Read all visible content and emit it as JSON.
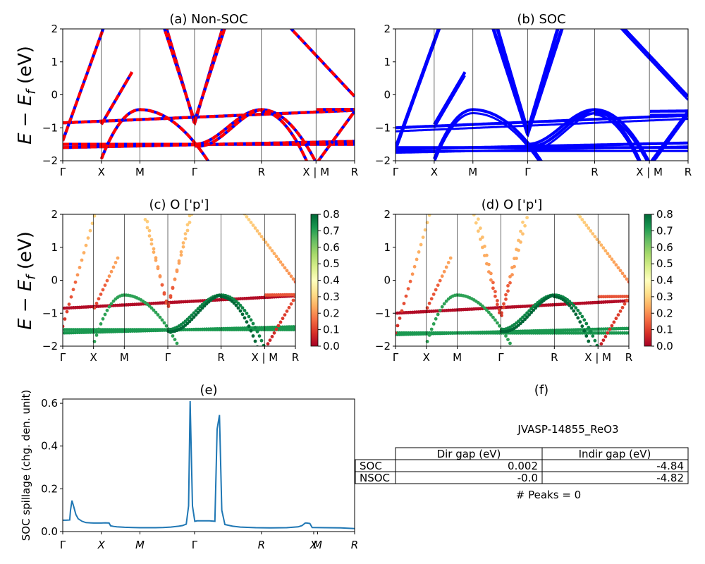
{
  "colors": {
    "nonsoc_solid": "#0000ff",
    "nonsoc_dash": "#ff0000",
    "soc": "#0000ff",
    "spillage": "#1f77b4",
    "colormap": [
      "#a50026",
      "#d73027",
      "#f46d43",
      "#fdae61",
      "#fee08b",
      "#ffffbf",
      "#d9ef8b",
      "#a6d96a",
      "#66bd63",
      "#1a9850",
      "#006837"
    ]
  },
  "chart_data": [
    {
      "type": "line",
      "panel": "a",
      "title": "(a) Non-SOC",
      "ylabel_parts": {
        "main": "E − E",
        "sub": "f",
        "unit": " (eV)"
      },
      "ylim": [
        -2,
        2
      ],
      "yticks": [
        "2",
        "1",
        "0",
        "−1",
        "−2"
      ],
      "xticks": [
        {
          "label": "Γ",
          "k": 0.0
        },
        {
          "label": "X",
          "k": 0.5
        },
        {
          "label": "M",
          "k": 1.0
        },
        {
          "label": "Γ",
          "k": 1.707
        },
        {
          "label": "R",
          "k": 2.573
        },
        {
          "label": "X | M",
          "k": 3.28
        },
        {
          "label": "R",
          "k": 3.78
        }
      ],
      "line_style": "thick blue with red dashes"
    },
    {
      "type": "line",
      "panel": "b",
      "title": "(b) SOC",
      "ylim": [
        -2,
        2
      ],
      "yticks": [
        "2",
        "1",
        "0",
        "−1",
        "−2"
      ],
      "xticks": [
        {
          "label": "Γ",
          "k": 0.0
        },
        {
          "label": "X",
          "k": 0.5
        },
        {
          "label": "M",
          "k": 1.0
        },
        {
          "label": "Γ",
          "k": 1.707
        },
        {
          "label": "R",
          "k": 2.573
        },
        {
          "label": "X | M",
          "k": 3.28
        },
        {
          "label": "R",
          "k": 3.78
        }
      ]
    },
    {
      "type": "scatter",
      "panel": "c",
      "title": "(c)  O ['p']",
      "ylabel_parts": {
        "main": "E − E",
        "sub": "f",
        "unit": " (eV)"
      },
      "ylim": [
        -2,
        2
      ],
      "yticks": [
        "2",
        "1",
        "0",
        "−1",
        "−2"
      ],
      "xticks": [
        {
          "label": "Γ",
          "k": 0.0
        },
        {
          "label": "X",
          "k": 0.5
        },
        {
          "label": "M",
          "k": 1.0
        },
        {
          "label": "Γ",
          "k": 1.707
        },
        {
          "label": "R",
          "k": 2.573
        },
        {
          "label": "X | M",
          "k": 3.28
        },
        {
          "label": "R",
          "k": 3.78
        }
      ],
      "colorbar": {
        "min": 0.0,
        "max": 0.8,
        "ticks": [
          "0.0",
          "0.1",
          "0.2",
          "0.3",
          "0.4",
          "0.5",
          "0.6",
          "0.7",
          "0.8"
        ]
      }
    },
    {
      "type": "scatter",
      "panel": "d",
      "title": "(d) O ['p']",
      "ylim": [
        -2,
        2
      ],
      "yticks": [
        "2",
        "1",
        "0",
        "−1",
        "−2"
      ],
      "xticks": [
        {
          "label": "Γ",
          "k": 0.0
        },
        {
          "label": "X",
          "k": 0.5
        },
        {
          "label": "M",
          "k": 1.0
        },
        {
          "label": "Γ",
          "k": 1.707
        },
        {
          "label": "R",
          "k": 2.573
        },
        {
          "label": "X | M",
          "k": 3.28
        },
        {
          "label": "R",
          "k": 3.78
        }
      ],
      "colorbar": {
        "min": 0.0,
        "max": 0.8,
        "ticks": [
          "0.0",
          "0.1",
          "0.2",
          "0.3",
          "0.4",
          "0.5",
          "0.6",
          "0.7",
          "0.8"
        ]
      }
    },
    {
      "type": "line",
      "panel": "e",
      "title": "(e)",
      "ylabel": "SOC spillage (chg. den. unit)",
      "ylim": [
        0,
        0.62
      ],
      "yticks": [
        {
          "label": "0.0",
          "v": 0.0
        },
        {
          "label": "0.2",
          "v": 0.2
        },
        {
          "label": "0.4",
          "v": 0.4
        },
        {
          "label": "0.6",
          "v": 0.6
        }
      ],
      "xticks": [
        "Γ",
        "X",
        "M",
        "Γ",
        "R",
        "X",
        "M",
        "R"
      ],
      "x": [
        0,
        0.04,
        0.09,
        0.1,
        0.12,
        0.14,
        0.17,
        0.2,
        0.25,
        0.3,
        0.4,
        0.5,
        0.55,
        0.6,
        0.62,
        0.66,
        0.7,
        0.8,
        0.9,
        1.0,
        1.1,
        1.2,
        1.3,
        1.4,
        1.5,
        1.55,
        1.6,
        1.63,
        1.65,
        1.68,
        1.71,
        1.74,
        1.8,
        1.9,
        1.97,
        2.0,
        2.03,
        2.06,
        2.1,
        2.2,
        2.3,
        2.5,
        2.7,
        2.9,
        3.05,
        3.1,
        3.14,
        3.16,
        3.2,
        3.23,
        3.4,
        3.6,
        3.78
      ],
      "y": [
        0.053,
        0.053,
        0.054,
        0.1,
        0.145,
        0.12,
        0.08,
        0.06,
        0.048,
        0.042,
        0.04,
        0.04,
        0.041,
        0.04,
        0.027,
        0.024,
        0.022,
        0.02,
        0.019,
        0.018,
        0.018,
        0.018,
        0.019,
        0.021,
        0.025,
        0.028,
        0.035,
        0.12,
        0.61,
        0.12,
        0.048,
        0.05,
        0.05,
        0.05,
        0.048,
        0.48,
        0.545,
        0.1,
        0.033,
        0.025,
        0.021,
        0.018,
        0.017,
        0.018,
        0.022,
        0.028,
        0.04,
        0.04,
        0.038,
        0.019,
        0.018,
        0.017,
        0.014
      ]
    }
  ],
  "panel_f": {
    "title": "(f)",
    "material": "JVASP-14855_ReO3",
    "table": {
      "col_headers": [
        "Dir gap (eV)",
        "Indir gap (eV)"
      ],
      "rows": [
        {
          "label": "SOC",
          "dir": "0.002",
          "indir": "-4.84"
        },
        {
          "label": "NSOC",
          "dir": "-0.0",
          "indir": "-4.82"
        }
      ]
    },
    "peaks": "# Peaks = 0"
  }
}
